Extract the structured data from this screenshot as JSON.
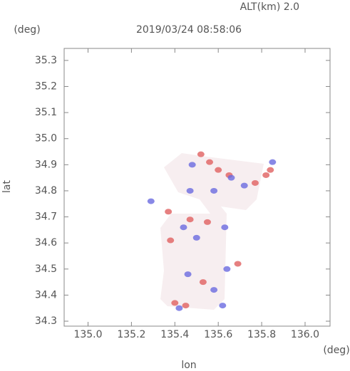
{
  "chart_data": {
    "type": "scatter",
    "title": "2019/03/24 08:58:06",
    "annotation": "ALT(km)  2.0",
    "y_unit": "(deg)",
    "x_unit": "(deg)",
    "xlabel": "lon",
    "ylabel": "lat",
    "xlim": [
      134.89,
      136.115
    ],
    "ylim": [
      34.281,
      35.346
    ],
    "xticks": [
      {
        "value": 135.0,
        "label": "135.0"
      },
      135.2,
      135.4,
      135.6,
      135.8,
      {
        "value": 136.0,
        "label": "136.0"
      }
    ],
    "yticks": [
      34.3,
      34.4,
      34.5,
      34.6,
      34.7,
      34.8,
      34.9,
      {
        "value": 35.0,
        "label": "35.0"
      },
      35.1,
      35.2,
      35.3
    ],
    "x": [
      135.52,
      135.56,
      135.6,
      135.65,
      135.82,
      135.84,
      135.37,
      135.47,
      135.55,
      135.38,
      135.69,
      135.4,
      135.45,
      135.53,
      135.77,
      135.48,
      135.66,
      135.72,
      135.85,
      135.58,
      135.44,
      135.5,
      135.63,
      135.46,
      135.58,
      135.42,
      135.62,
      135.29,
      135.64,
      135.47
    ],
    "y": [
      34.94,
      34.91,
      34.88,
      34.86,
      34.86,
      34.88,
      34.72,
      34.69,
      34.68,
      34.61,
      34.52,
      34.37,
      34.36,
      34.45,
      34.83,
      34.9,
      34.85,
      34.82,
      34.91,
      34.8,
      34.66,
      34.62,
      34.66,
      34.48,
      34.42,
      34.35,
      34.36,
      34.76,
      34.5,
      34.8
    ],
    "colors": [
      "#e06060",
      "#e06060",
      "#e06060",
      "#e06060",
      "#e06060",
      "#e06060",
      "#e06060",
      "#e06060",
      "#e06060",
      "#e06060",
      "#e06060",
      "#e06060",
      "#e06060",
      "#e06060",
      "#e06060",
      "#6a6ae0",
      "#6a6ae0",
      "#6a6ae0",
      "#6a6ae0",
      "#6a6ae0",
      "#6a6ae0",
      "#6a6ae0",
      "#6a6ae0",
      "#6a6ae0",
      "#6a6ae0",
      "#6a6ae0",
      "#6a6ae0",
      "#6a6ae0",
      "#6a6ae0",
      "#6a6ae0"
    ]
  }
}
